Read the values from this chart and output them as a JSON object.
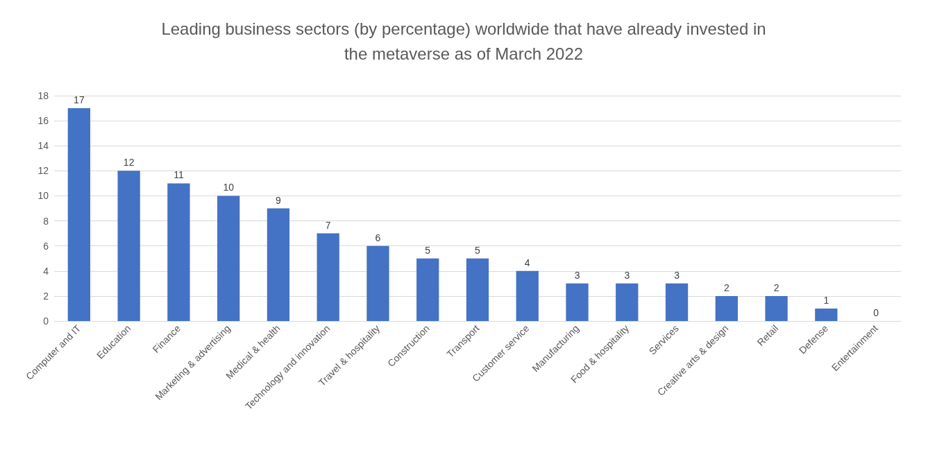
{
  "chart_data": {
    "type": "bar",
    "title": "Leading business sectors (by percentage) worldwide that have already invested in\nthe metaverse as of March 2022",
    "categories": [
      "Computer and IT",
      "Education",
      "Finance",
      "Marketing & advertising",
      "Medical & health",
      "Technology and innovation",
      "Travel & hospitality",
      "Construction",
      "Transport",
      "Customer service",
      "Manufacturing",
      "Food & hospitality",
      "Services",
      "Creative arts & design",
      "Retail",
      "Defense",
      "Entertainment"
    ],
    "values": [
      17,
      12,
      11,
      10,
      9,
      7,
      6,
      5,
      5,
      4,
      3,
      3,
      3,
      2,
      2,
      1,
      0
    ],
    "color": "#4472c4",
    "ylim": [
      0,
      18
    ],
    "yticks": [
      0,
      2,
      4,
      6,
      8,
      10,
      12,
      14,
      16,
      18
    ],
    "grid": "y",
    "data_labels": true
  }
}
